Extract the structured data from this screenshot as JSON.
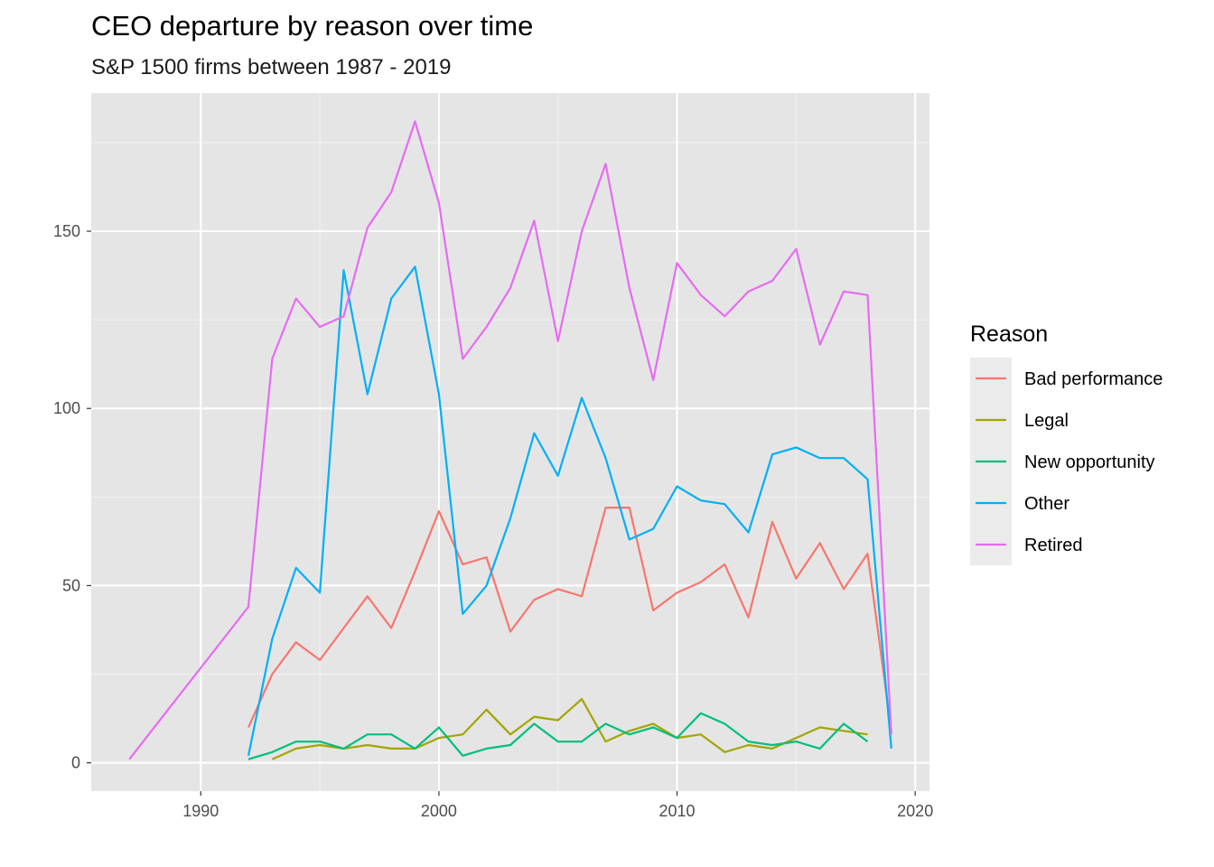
{
  "chart_data": {
    "type": "line",
    "title": "CEO departure by reason over time",
    "subtitle": "S&P 1500 firms between 1987 - 2019",
    "xlabel": "",
    "ylabel": "",
    "xlim": [
      1985.4,
      2020.6
    ],
    "ylim": [
      -8,
      189
    ],
    "x_ticks": [
      1990,
      2000,
      2010,
      2020
    ],
    "x_tick_labels": [
      "1990",
      "2000",
      "2010",
      "2020"
    ],
    "y_ticks": [
      0,
      50,
      100,
      150
    ],
    "y_tick_labels": [
      "0",
      "50",
      "100",
      "150"
    ],
    "grid": true,
    "legend_position": "right",
    "legend_title": "Reason",
    "colors": {
      "panel": "#e5e5e5",
      "grid_major": "#ffffff",
      "grid_minor": "#f2f2f2",
      "axis_text": "#4d4d4d"
    },
    "series": [
      {
        "name": "Bad performance",
        "color": "#f8766d",
        "x": [
          1992,
          1993,
          1994,
          1995,
          1996,
          1997,
          1998,
          1999,
          2000,
          2001,
          2002,
          2003,
          2004,
          2005,
          2006,
          2007,
          2008,
          2009,
          2010,
          2011,
          2012,
          2013,
          2014,
          2015,
          2016,
          2017,
          2018,
          2019
        ],
        "y": [
          10,
          25,
          34,
          29,
          38,
          47,
          38,
          54,
          71,
          56,
          58,
          37,
          46,
          49,
          47,
          72,
          72,
          43,
          48,
          51,
          56,
          41,
          68,
          52,
          62,
          49,
          59,
          9
        ]
      },
      {
        "name": "Legal",
        "color": "#a3a500",
        "x": [
          1993,
          1994,
          1995,
          1996,
          1997,
          1998,
          1999,
          2000,
          2001,
          2002,
          2003,
          2004,
          2005,
          2006,
          2007,
          2008,
          2009,
          2010,
          2011,
          2012,
          2013,
          2014,
          2015,
          2016,
          2017,
          2018
        ],
        "y": [
          1,
          4,
          5,
          4,
          5,
          4,
          4,
          7,
          8,
          15,
          8,
          13,
          12,
          18,
          6,
          9,
          11,
          7,
          8,
          3,
          5,
          4,
          7,
          10,
          9,
          8
        ]
      },
      {
        "name": "New opportunity",
        "color": "#00bf7d",
        "x": [
          1992,
          1993,
          1994,
          1995,
          1996,
          1997,
          1998,
          1999,
          2000,
          2001,
          2002,
          2003,
          2004,
          2005,
          2006,
          2007,
          2008,
          2009,
          2010,
          2011,
          2012,
          2013,
          2014,
          2015,
          2016,
          2017,
          2018
        ],
        "y": [
          1,
          3,
          6,
          6,
          4,
          8,
          8,
          4,
          10,
          2,
          4,
          5,
          11,
          6,
          6,
          11,
          8,
          10,
          7,
          14,
          11,
          6,
          5,
          6,
          4,
          11,
          6
        ]
      },
      {
        "name": "Other",
        "color": "#00b0f6",
        "x": [
          1992,
          1993,
          1994,
          1995,
          1996,
          1997,
          1998,
          1999,
          2000,
          2001,
          2002,
          2003,
          2004,
          2005,
          2006,
          2007,
          2008,
          2009,
          2010,
          2011,
          2012,
          2013,
          2014,
          2015,
          2016,
          2017,
          2018,
          2019
        ],
        "y": [
          2,
          35,
          55,
          48,
          139,
          104,
          131,
          140,
          104,
          42,
          50,
          69,
          93,
          81,
          103,
          86,
          63,
          66,
          78,
          74,
          73,
          65,
          87,
          89,
          86,
          86,
          80,
          4
        ]
      },
      {
        "name": "Retired",
        "color": "#e76bf3",
        "x": [
          1987,
          1992,
          1993,
          1994,
          1995,
          1996,
          1997,
          1998,
          1999,
          2000,
          2001,
          2002,
          2003,
          2004,
          2005,
          2006,
          2007,
          2008,
          2009,
          2010,
          2011,
          2012,
          2013,
          2014,
          2015,
          2016,
          2017,
          2018,
          2019
        ],
        "y": [
          1,
          44,
          114,
          131,
          123,
          126,
          151,
          161,
          181,
          158,
          114,
          123,
          134,
          153,
          119,
          150,
          169,
          134,
          108,
          141,
          132,
          126,
          133,
          136,
          145,
          118,
          133,
          132,
          8
        ]
      }
    ]
  }
}
